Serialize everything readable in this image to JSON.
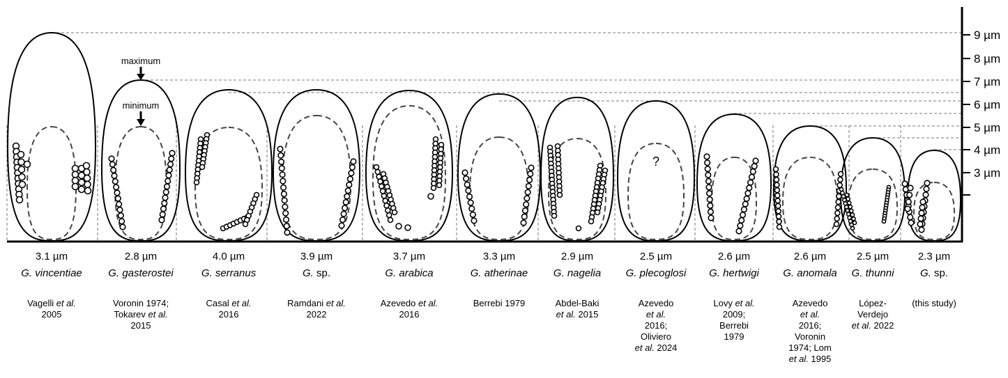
{
  "figure": {
    "scale_labels": [
      "9 µm",
      "8 µm",
      "7 µm",
      "6 µm",
      "5 µm",
      "4 µm",
      "3 µm"
    ],
    "arrow_labels": {
      "maximum": "maximum",
      "minimum": "minimum"
    },
    "question_mark": "?",
    "specimens": [
      {
        "size": "3.1 µm",
        "genus": "G.",
        "epithet": "vincentiae",
        "ref_lines": [
          [
            {
              "t": "Vagelli "
            },
            {
              "t": "et al.",
              "i": true
            }
          ],
          [
            {
              "t": "2005"
            }
          ]
        ]
      },
      {
        "size": "2.8 µm",
        "genus": "G.",
        "epithet": "gasterostei",
        "ref_lines": [
          [
            {
              "t": "Voronin 1974;"
            }
          ],
          [
            {
              "t": "Tokarev "
            },
            {
              "t": "et al.",
              "i": true
            }
          ],
          [
            {
              "t": "2015"
            }
          ]
        ]
      },
      {
        "size": "4.0 µm",
        "genus": "G.",
        "epithet": "serranus",
        "ref_lines": [
          [
            {
              "t": "Casal "
            },
            {
              "t": "et al.",
              "i": true
            }
          ],
          [
            {
              "t": "2016"
            }
          ]
        ]
      },
      {
        "size": "3.9 µm",
        "genus": "G.",
        "epithet": "sp.",
        "epithet_plain": true,
        "ref_lines": [
          [
            {
              "t": "Ramdani "
            },
            {
              "t": "et al.",
              "i": true
            }
          ],
          [
            {
              "t": "2022"
            }
          ]
        ]
      },
      {
        "size": "3.7 µm",
        "genus": "G.",
        "epithet": "arabica",
        "ref_lines": [
          [
            {
              "t": "Azevedo "
            },
            {
              "t": "et al.",
              "i": true
            }
          ],
          [
            {
              "t": "2016"
            }
          ]
        ]
      },
      {
        "size": "3.3 µm",
        "genus": "G.",
        "epithet": "atherinae",
        "ref_lines": [
          [
            {
              "t": "Berrebi 1979"
            }
          ]
        ]
      },
      {
        "size": "2.9 µm",
        "genus": "G.",
        "epithet": "nagelia",
        "ref_lines": [
          [
            {
              "t": "Abdel-Baki"
            }
          ],
          [
            {
              "t": "et al.",
              "i": true
            },
            {
              "t": " 2015"
            }
          ]
        ]
      },
      {
        "size": "2.5 µm",
        "genus": "G.",
        "epithet": "plecoglosi",
        "ref_lines": [
          [
            {
              "t": "Azevedo"
            }
          ],
          [
            {
              "t": "et al.",
              "i": true
            }
          ],
          [
            {
              "t": "2016;"
            }
          ],
          [
            {
              "t": "Oliviero"
            }
          ],
          [
            {
              "t": "et al.",
              "i": true
            },
            {
              "t": " 2024"
            }
          ]
        ]
      },
      {
        "size": "2.6 µm",
        "genus": "G.",
        "epithet": "hertwigi",
        "ref_lines": [
          [
            {
              "t": "Lovy "
            },
            {
              "t": "et al.",
              "i": true
            }
          ],
          [
            {
              "t": "2009;"
            }
          ],
          [
            {
              "t": "Berrebi"
            }
          ],
          [
            {
              "t": "1979"
            }
          ]
        ]
      },
      {
        "size": "2.6 µm",
        "genus": "G.",
        "epithet": "anomala",
        "ref_lines": [
          [
            {
              "t": "Azevedo"
            }
          ],
          [
            {
              "t": "et al.",
              "i": true
            }
          ],
          [
            {
              "t": "2016;"
            }
          ],
          [
            {
              "t": "Voronin"
            }
          ],
          [
            {
              "t": "1974; Lom"
            }
          ],
          [
            {
              "t": "et al.",
              "i": true
            },
            {
              "t": " 1995"
            }
          ]
        ]
      },
      {
        "size": "2.5 µm",
        "genus": "G.",
        "epithet": "thunni",
        "ref_lines": [
          [
            {
              "t": "López-"
            }
          ],
          [
            {
              "t": "Verdejo"
            }
          ],
          [
            {
              "t": "et al.",
              "i": true
            },
            {
              "t": " 2022"
            }
          ]
        ]
      },
      {
        "size": "2.3 µm",
        "genus": "G.",
        "epithet": "sp.",
        "epithet_plain": true,
        "ref_lines": [
          [
            {
              "t": "(this study)"
            }
          ]
        ]
      }
    ]
  }
}
